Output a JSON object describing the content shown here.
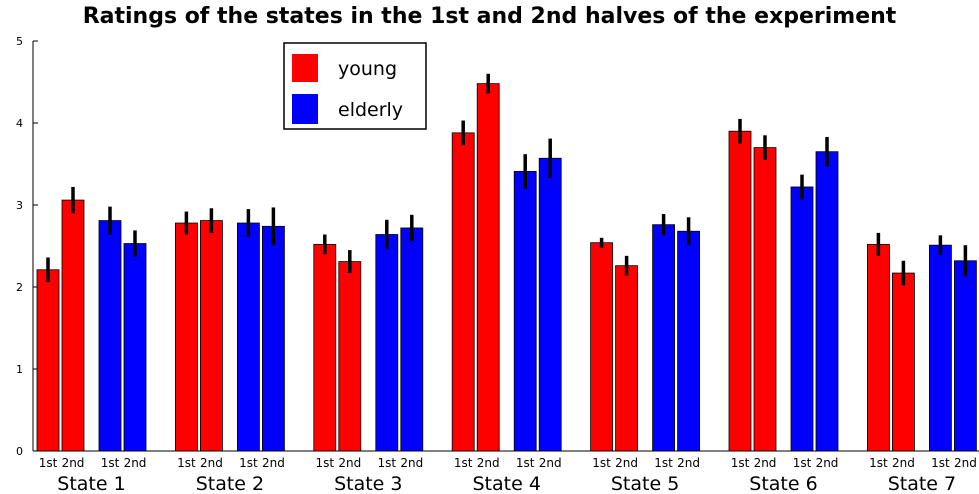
{
  "chart_data": {
    "type": "bar",
    "title": "Ratings of the states in the 1st and 2nd halves of the experiment",
    "xlabel": "",
    "ylabel": "",
    "ylim": [
      0,
      5
    ],
    "yticks": [
      "0",
      "1",
      "2",
      "3",
      "4",
      "5"
    ],
    "categories": [
      "State 1",
      "State 2",
      "State 3",
      "State 4",
      "State 5",
      "State 6",
      "State 7"
    ],
    "bar_labels": [
      "1st",
      "2nd"
    ],
    "legend_position": "top-center",
    "grid": false,
    "series": [
      {
        "name": "young",
        "color": "#ff0000",
        "first": [
          2.21,
          2.78,
          2.52,
          3.88,
          2.54,
          3.9,
          2.52
        ],
        "first_err": [
          0.15,
          0.14,
          0.12,
          0.15,
          0.06,
          0.15,
          0.14
        ],
        "second": [
          3.06,
          2.81,
          2.31,
          4.48,
          2.26,
          3.7,
          2.17
        ],
        "second_err": [
          0.16,
          0.15,
          0.14,
          0.12,
          0.12,
          0.15,
          0.15
        ]
      },
      {
        "name": "elderly",
        "color": "#0000ff",
        "first": [
          2.81,
          2.78,
          2.64,
          3.41,
          2.76,
          3.22,
          2.51
        ],
        "first_err": [
          0.17,
          0.17,
          0.18,
          0.21,
          0.13,
          0.15,
          0.12
        ],
        "second": [
          2.53,
          2.74,
          2.72,
          3.57,
          2.68,
          3.65,
          2.32
        ],
        "second_err": [
          0.16,
          0.23,
          0.16,
          0.24,
          0.17,
          0.18,
          0.19
        ]
      }
    ]
  }
}
